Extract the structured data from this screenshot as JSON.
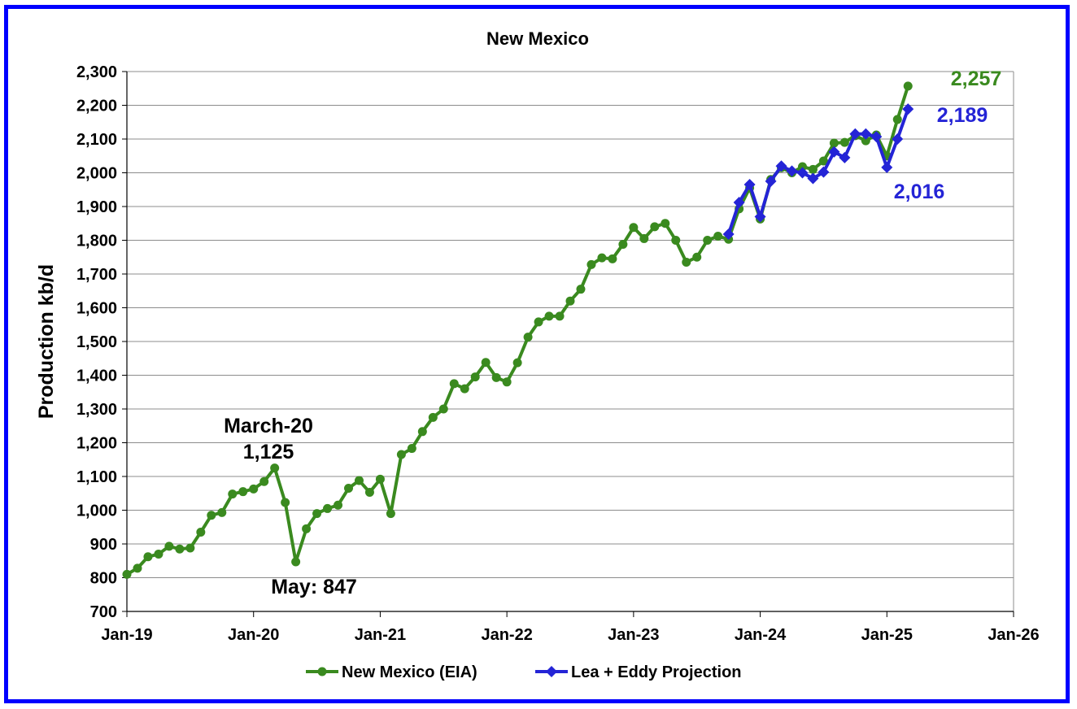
{
  "chart_data": {
    "type": "line",
    "title": "New Mexico",
    "ylabel": "Production kb/d",
    "xlabel": "",
    "ylim": [
      700,
      2300
    ],
    "yticks": [
      700,
      800,
      900,
      1000,
      1100,
      1200,
      1300,
      1400,
      1500,
      1600,
      1700,
      1800,
      1900,
      2000,
      2100,
      2200,
      2300
    ],
    "ytick_labels": [
      "700",
      "800",
      "900",
      "1,000",
      "1,100",
      "1,200",
      "1,300",
      "1,400",
      "1,500",
      "1,600",
      "1,700",
      "1,800",
      "1,900",
      "2,000",
      "2,100",
      "2,200",
      "2,300"
    ],
    "xlim": [
      "2019-01",
      "2026-01"
    ],
    "xtick_labels": [
      "Jan-19",
      "Jan-20",
      "Jan-21",
      "Jan-22",
      "Jan-23",
      "Jan-24",
      "Jan-25",
      "Jan-26"
    ],
    "grid": "horizontal",
    "legend_position": "bottom",
    "series": [
      {
        "name": "New Mexico (EIA)",
        "color": "#3a8a1f",
        "marker": "circle",
        "start": "2019-01",
        "values": [
          810,
          828,
          862,
          870,
          893,
          885,
          888,
          935,
          985,
          993,
          1048,
          1055,
          1063,
          1085,
          1125,
          1023,
          847,
          945,
          990,
          1005,
          1015,
          1065,
          1088,
          1053,
          1092,
          990,
          1165,
          1183,
          1233,
          1275,
          1300,
          1375,
          1360,
          1395,
          1438,
          1393,
          1380,
          1437,
          1513,
          1558,
          1575,
          1575,
          1620,
          1655,
          1728,
          1748,
          1745,
          1788,
          1838,
          1805,
          1840,
          1850,
          1800,
          1735,
          1750,
          1800,
          1812,
          1803,
          1893,
          1955,
          1863,
          1980,
          2015,
          2000,
          2018,
          2010,
          2035,
          2088,
          2090,
          2110,
          2095,
          2112,
          2050,
          2158,
          2257
        ]
      },
      {
        "name": "Lea + Eddy Projection",
        "color": "#2424d6",
        "marker": "diamond",
        "start": "2023-10",
        "values": [
          1818,
          1912,
          1965,
          1870,
          1975,
          2020,
          2005,
          2000,
          1983,
          2002,
          2062,
          2045,
          2115,
          2115,
          2107,
          2016,
          2100,
          2189
        ]
      }
    ],
    "annotations": [
      {
        "lines": [
          "March-20",
          "1,125"
        ],
        "color": "#000000"
      },
      {
        "lines": [
          "May: 847"
        ],
        "color": "#000000"
      },
      {
        "lines": [
          "2,257"
        ],
        "color": "#3a8a1f"
      },
      {
        "lines": [
          "2,189"
        ],
        "color": "#2424d6"
      },
      {
        "lines": [
          "2,016"
        ],
        "color": "#2424d6"
      }
    ]
  }
}
